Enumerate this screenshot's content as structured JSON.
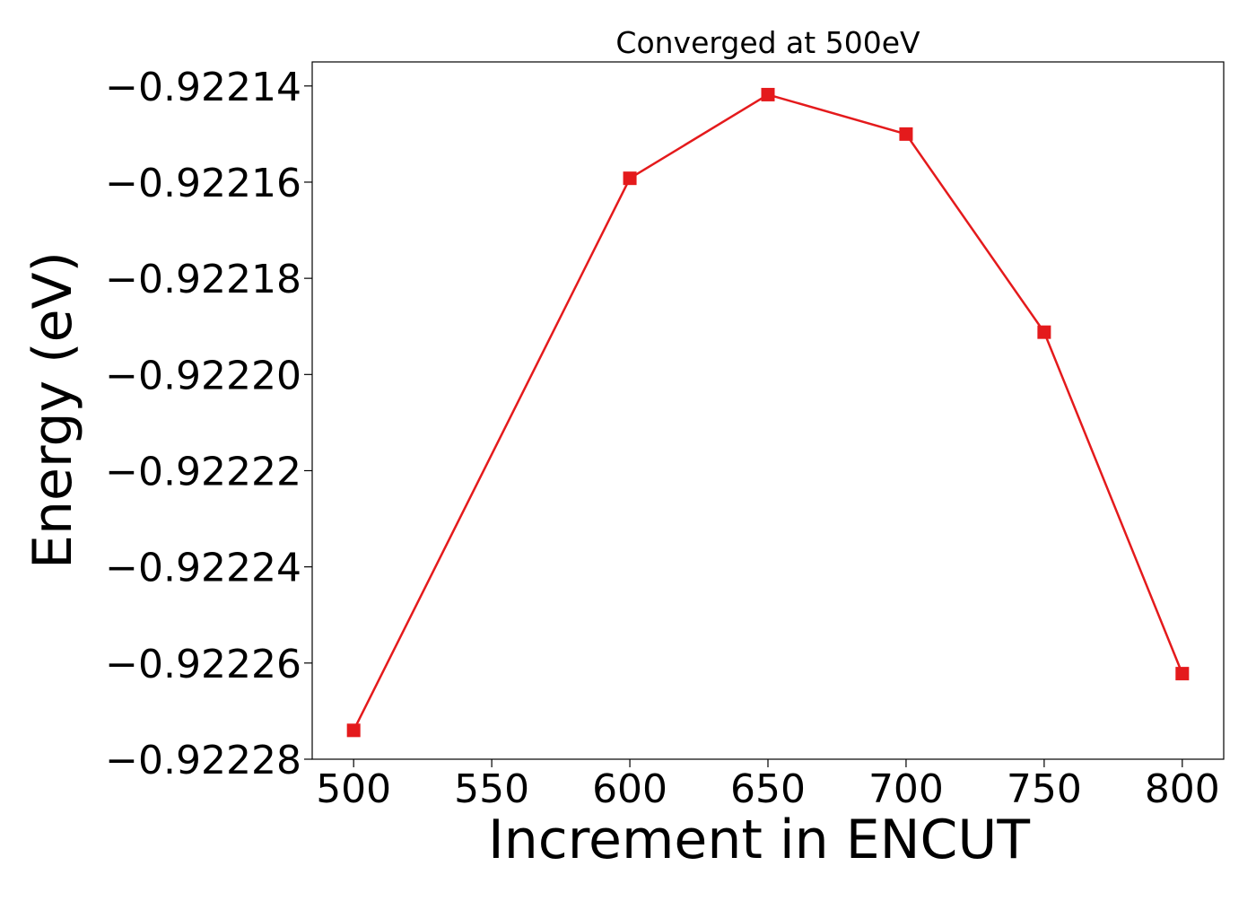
{
  "chart_data": {
    "type": "line",
    "title": "Converged at 500eV",
    "xlabel": "Increment in ENCUT",
    "ylabel": "Energy (eV)",
    "x": [
      500,
      600,
      650,
      700,
      750,
      800
    ],
    "series": [
      {
        "values": [
          -0.922274,
          -0.9221592,
          -0.9221418,
          -0.92215,
          -0.9221912,
          -0.9222622
        ],
        "color": "#e41a1c",
        "marker": "square"
      }
    ],
    "xlim": [
      485,
      815
    ],
    "ylim": [
      -0.92228,
      -0.922135
    ],
    "xticks": [
      500,
      550,
      600,
      650,
      700,
      750,
      800
    ],
    "yticks": [
      -0.92214,
      -0.92216,
      -0.92218,
      -0.9222,
      -0.92222,
      -0.92224,
      -0.92226,
      -0.92228
    ],
    "ytick_labels": [
      "−0.92214",
      "−0.92216",
      "−0.92218",
      "−0.92220",
      "−0.92222",
      "−0.92224",
      "−0.92226",
      "−0.92228"
    ],
    "xtick_labels": [
      "500",
      "550",
      "600",
      "650",
      "700",
      "750",
      "800"
    ],
    "grid": false,
    "legend": "none"
  }
}
